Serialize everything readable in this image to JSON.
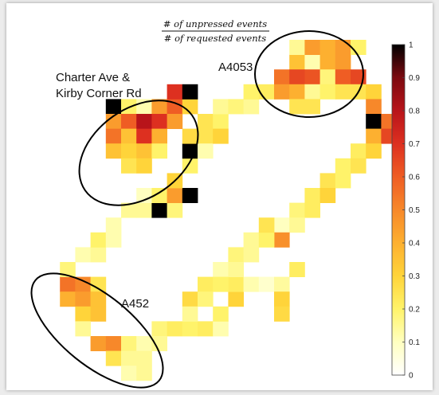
{
  "chart_data": {
    "type": "heatmap",
    "title_numerator": "# of unpressed events",
    "title_denominator": "# of requested events",
    "colorbar": {
      "min": 0,
      "max": 1,
      "ticks": [
        "0",
        "0.1",
        "0.2",
        "0.3",
        "0.4",
        "0.5",
        "0.6",
        "0.7",
        "0.8",
        "0.9",
        "1"
      ]
    },
    "colormap": [
      "#ffffff",
      "#ffffc0",
      "#fff36a",
      "#ffd43a",
      "#fdb030",
      "#f7882a",
      "#ef5d24",
      "#dd3020",
      "#b8141a",
      "#7c0a10",
      "#000000"
    ],
    "annotations": [
      {
        "id": "charter",
        "lines": [
          "Charter Ave &",
          "Kirby Corner Rd"
        ]
      },
      {
        "id": "a4053",
        "lines": [
          "A4053"
        ]
      },
      {
        "id": "a452",
        "lines": [
          "A452"
        ]
      }
    ],
    "cells": [
      [
        12,
        17,
        0.3
      ],
      [
        12,
        16,
        0.22
      ],
      [
        13,
        16,
        0.12
      ],
      [
        14,
        16,
        0.08
      ],
      [
        15,
        16,
        0.14
      ],
      [
        15,
        17,
        0.3
      ],
      [
        15,
        18,
        0.28
      ],
      [
        16,
        15,
        0.22
      ],
      [
        7,
        19,
        0.18
      ],
      [
        8,
        19,
        0.22
      ],
      [
        9,
        19,
        0.2
      ],
      [
        10,
        19,
        0.22
      ],
      [
        11,
        19,
        0.12
      ],
      [
        11,
        18,
        0.2
      ],
      [
        3,
        20,
        0.45
      ],
      [
        4,
        20,
        0.5
      ],
      [
        5,
        20,
        0.18
      ],
      [
        6,
        20,
        0.12
      ],
      [
        7,
        20,
        0.15
      ],
      [
        4,
        21,
        0.25
      ],
      [
        5,
        21,
        0.15
      ],
      [
        6,
        21,
        0.15
      ],
      [
        5,
        22,
        0.12
      ],
      [
        6,
        22,
        0.15
      ],
      [
        1,
        16,
        0.55
      ],
      [
        2,
        16,
        0.5
      ],
      [
        3,
        16,
        0.25
      ],
      [
        1,
        17,
        0.4
      ],
      [
        2,
        17,
        0.45
      ],
      [
        3,
        17,
        0.35
      ],
      [
        2,
        18,
        0.3
      ],
      [
        3,
        18,
        0.35
      ],
      [
        2,
        19,
        0.15
      ],
      [
        1,
        15,
        0.18
      ],
      [
        2,
        14,
        0.12
      ],
      [
        3,
        14,
        0.15
      ],
      [
        3,
        13,
        0.2
      ],
      [
        4,
        13,
        0.12
      ],
      [
        4,
        12,
        0.12
      ],
      [
        5,
        11,
        0.15
      ],
      [
        6,
        11,
        0.15
      ],
      [
        7,
        11,
        1.0
      ],
      [
        6,
        10,
        0.1
      ],
      [
        7,
        10,
        0.2
      ],
      [
        8,
        11,
        0.18
      ],
      [
        8,
        10,
        0.45
      ],
      [
        9,
        10,
        1.0
      ],
      [
        8,
        9,
        0.3
      ],
      [
        9,
        8,
        0.2
      ],
      [
        9,
        7,
        1.0
      ],
      [
        9,
        6,
        0.28
      ],
      [
        10,
        6,
        0.25
      ],
      [
        10,
        7,
        0.12
      ],
      [
        10,
        5,
        0.25
      ],
      [
        11,
        5,
        0.2
      ],
      [
        11,
        6,
        0.3
      ],
      [
        11,
        4,
        0.15
      ],
      [
        12,
        4,
        0.18
      ],
      [
        13,
        4,
        0.15
      ],
      [
        13,
        3,
        0.2
      ],
      [
        14,
        3,
        0.22
      ],
      [
        15,
        3,
        0.15
      ],
      [
        4,
        4,
        1.0
      ],
      [
        5,
        4,
        0.2
      ],
      [
        6,
        4,
        0.12
      ],
      [
        7,
        4,
        0.45
      ],
      [
        8,
        4,
        0.6
      ],
      [
        9,
        4,
        0.3
      ],
      [
        4,
        5,
        0.45
      ],
      [
        5,
        5,
        0.6
      ],
      [
        6,
        5,
        0.8
      ],
      [
        7,
        5,
        0.7
      ],
      [
        8,
        5,
        0.45
      ],
      [
        4,
        6,
        0.55
      ],
      [
        5,
        6,
        0.35
      ],
      [
        6,
        6,
        0.7
      ],
      [
        7,
        6,
        0.4
      ],
      [
        4,
        7,
        0.35
      ],
      [
        5,
        7,
        0.3
      ],
      [
        6,
        7,
        0.35
      ],
      [
        7,
        7,
        0.2
      ],
      [
        5,
        8,
        0.25
      ],
      [
        6,
        8,
        0.3
      ],
      [
        8,
        3,
        0.7
      ],
      [
        9,
        3,
        1.0
      ],
      [
        16,
        1,
        0.35
      ],
      [
        17,
        1,
        0.12
      ],
      [
        18,
        1,
        0.4
      ],
      [
        19,
        1,
        0.45
      ],
      [
        16,
        0,
        0.15
      ],
      [
        17,
        0,
        0.45
      ],
      [
        18,
        0,
        0.4
      ],
      [
        19,
        0,
        0.45
      ],
      [
        20,
        0,
        0.2
      ],
      [
        15,
        2,
        0.55
      ],
      [
        16,
        2,
        0.65
      ],
      [
        17,
        2,
        0.62
      ],
      [
        18,
        2,
        0.18
      ],
      [
        19,
        2,
        0.6
      ],
      [
        20,
        2,
        0.65
      ],
      [
        15,
        3,
        0.45
      ],
      [
        16,
        3,
        0.4
      ],
      [
        17,
        3,
        0.15
      ],
      [
        18,
        3,
        0.2
      ],
      [
        19,
        3,
        0.25
      ],
      [
        20,
        3,
        0.25
      ],
      [
        16,
        4,
        0.25
      ],
      [
        17,
        4,
        0.25
      ],
      [
        21,
        3,
        0.3
      ],
      [
        21,
        4,
        0.5
      ],
      [
        21,
        5,
        1.0
      ],
      [
        22,
        5,
        0.55
      ],
      [
        21,
        6,
        0.4
      ],
      [
        22,
        6,
        0.65
      ],
      [
        20,
        7,
        0.22
      ],
      [
        21,
        7,
        0.3
      ],
      [
        19,
        8,
        0.2
      ],
      [
        20,
        8,
        0.25
      ],
      [
        18,
        9,
        0.25
      ],
      [
        19,
        9,
        0.2
      ],
      [
        17,
        10,
        0.22
      ],
      [
        18,
        10,
        0.3
      ],
      [
        16,
        11,
        0.18
      ],
      [
        17,
        11,
        0.22
      ],
      [
        15,
        12,
        0.1
      ],
      [
        16,
        12,
        0.15
      ],
      [
        15,
        13,
        0.48
      ],
      [
        13,
        13,
        0.15
      ],
      [
        14,
        13,
        0.2
      ],
      [
        14,
        12,
        0.25
      ],
      [
        12,
        14,
        0.18
      ],
      [
        13,
        14,
        0.15
      ],
      [
        11,
        15,
        0.12
      ],
      [
        12,
        15,
        0.15
      ],
      [
        10,
        16,
        0.22
      ],
      [
        11,
        16,
        0.2
      ],
      [
        9,
        17,
        0.28
      ],
      [
        10,
        17,
        0.18
      ],
      [
        9,
        18,
        0.15
      ]
    ]
  }
}
